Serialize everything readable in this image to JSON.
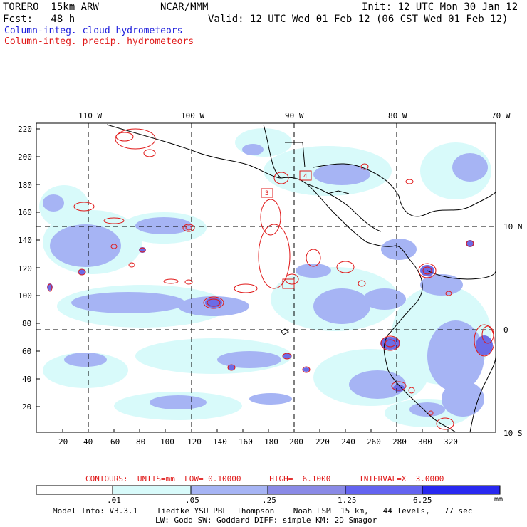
{
  "header": {
    "model": "TORERO  15km ARW",
    "org": "NCAR/MMM",
    "init": "Init: 12 UTC Mon 30 Jan 12",
    "fcst": "Fcst:   48 h",
    "valid": "Valid: 12 UTC Wed 01 Feb 12 (06 CST Wed 01 Feb 12)",
    "legend_cloud": "Column-integ. cloud hydrometeors",
    "legend_precip": "Column-integ. precip. hydrometeors"
  },
  "map": {
    "lon_labels": [
      "110 W",
      "100 W",
      "90 W",
      "80 W",
      "70 W"
    ],
    "lat_labels": [
      "10 N",
      "0",
      "10 S"
    ],
    "y_ticks": [
      "220",
      "200",
      "180",
      "160",
      "140",
      "120",
      "100",
      "80",
      "60",
      "40",
      "20"
    ],
    "x_ticks": [
      "20",
      "40",
      "60",
      "80",
      "100",
      "120",
      "140",
      "160",
      "180",
      "200",
      "220",
      "240",
      "260",
      "280",
      "300",
      "320"
    ],
    "box_labels": [
      "3",
      "4"
    ]
  },
  "contour_info": "CONTOURS:  UNITS=mm  LOW= 0.10000      HIGH=  6.1000      INTERVAL=X  3.0000",
  "colorbar": {
    "labels": [
      ".01",
      ".05",
      ".25",
      "1.25",
      "6.25"
    ],
    "unit": "mm",
    "colors": [
      "#ffffff",
      "#d8fafa",
      "#a6b4f4",
      "#8a8ae6",
      "#6464f0",
      "#2828f0"
    ]
  },
  "footer": {
    "line1": "Model Info: V3.3.1    Tiedtke YSU PBL  Thompson    Noah LSM  15 km,   44 levels,   77 sec",
    "line2": "LW: Godd SW: Goddard DIFF: simple KM: 2D Smagor"
  }
}
